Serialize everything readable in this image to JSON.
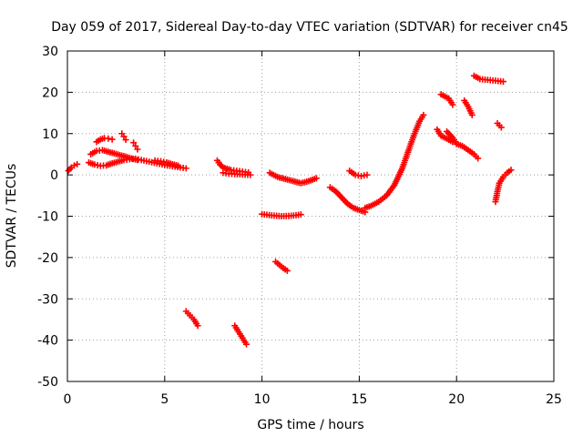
{
  "chart_data": {
    "type": "scatter",
    "title": "Day 059 of 2017, Sidereal Day-to-day VTEC variation (SDTVAR) for receiver cn45",
    "xlabel": "GPS time / hours",
    "ylabel": "SDTVAR / TECUs",
    "xlim": [
      0,
      25
    ],
    "ylim": [
      -50,
      30
    ],
    "xticks": [
      0,
      5,
      10,
      15,
      20,
      25
    ],
    "yticks": [
      -50,
      -40,
      -30,
      -20,
      -10,
      0,
      10,
      20,
      30
    ],
    "grid": true,
    "legend": "none",
    "marker": "+",
    "color": "#ff0000",
    "segments": [
      {
        "x": [
          0.05,
          0.2,
          0.35,
          0.5
        ],
        "y": [
          1.0,
          1.8,
          2.3,
          2.6
        ]
      },
      {
        "x": [
          1.1,
          1.4,
          1.7,
          2.0,
          2.3,
          2.6,
          2.9,
          3.2,
          3.5,
          3.8,
          4.2,
          4.6,
          5.0,
          5.4,
          5.8,
          6.1
        ],
        "y": [
          3.0,
          2.5,
          2.2,
          2.3,
          2.8,
          3.2,
          3.6,
          3.8,
          3.9,
          3.6,
          3.2,
          2.8,
          2.4,
          2.1,
          1.8,
          1.6
        ]
      },
      {
        "x": [
          1.2,
          1.5,
          1.8,
          2.1,
          2.4,
          2.7,
          3.0,
          3.3,
          3.6
        ],
        "y": [
          5.0,
          5.8,
          6.0,
          5.6,
          5.2,
          4.8,
          4.4,
          4.0,
          3.6
        ]
      },
      {
        "x": [
          1.5,
          1.7,
          1.9,
          2.1,
          2.3
        ],
        "y": [
          8.0,
          8.6,
          8.9,
          8.8,
          8.6
        ]
      },
      {
        "x": [
          2.8,
          2.9,
          3.0
        ],
        "y": [
          10.0,
          9.3,
          8.5
        ]
      },
      {
        "x": [
          3.4,
          3.5,
          3.6
        ],
        "y": [
          7.8,
          7.0,
          6.2
        ]
      },
      {
        "x": [
          4.5,
          4.8,
          5.1,
          5.4,
          5.7
        ],
        "y": [
          3.5,
          3.3,
          3.0,
          2.6,
          2.2
        ]
      },
      {
        "x": [
          7.7,
          7.85,
          8.0,
          8.2,
          8.4,
          8.7,
          9.0,
          9.3
        ],
        "y": [
          3.5,
          2.5,
          1.8,
          1.5,
          1.2,
          1.0,
          0.8,
          0.6
        ]
      },
      {
        "x": [
          8.0,
          8.3,
          8.6,
          9.0,
          9.4
        ],
        "y": [
          0.5,
          0.3,
          0.2,
          0.1,
          0.0
        ]
      },
      {
        "x": [
          6.1,
          6.3,
          6.5,
          6.7
        ],
        "y": [
          -33.0,
          -34.0,
          -35.0,
          -36.5
        ]
      },
      {
        "x": [
          8.6,
          8.8,
          9.0,
          9.2
        ],
        "y": [
          -36.5,
          -38.0,
          -39.5,
          -41.0
        ]
      },
      {
        "x": [
          10.0,
          10.5,
          11.0,
          11.5,
          12.0
        ],
        "y": [
          -9.5,
          -9.8,
          -10.0,
          -9.9,
          -9.6
        ]
      },
      {
        "x": [
          10.7,
          10.9,
          11.1,
          11.3
        ],
        "y": [
          -21.0,
          -21.8,
          -22.6,
          -23.2
        ]
      },
      {
        "x": [
          10.4,
          10.8,
          11.2,
          11.6,
          12.0,
          12.4,
          12.8
        ],
        "y": [
          0.5,
          -0.5,
          -1.0,
          -1.5,
          -2.0,
          -1.5,
          -0.8
        ]
      },
      {
        "x": [
          13.5,
          13.8,
          14.1,
          14.4,
          14.7,
          15.0,
          15.3
        ],
        "y": [
          -3.0,
          -4.0,
          -5.5,
          -7.0,
          -8.0,
          -8.5,
          -9.0
        ]
      },
      {
        "x": [
          14.5,
          14.8,
          15.1,
          15.4
        ],
        "y": [
          1.0,
          0.0,
          -0.3,
          0.0
        ]
      },
      {
        "x": [
          15.3,
          15.6,
          16.0,
          16.4,
          16.8,
          17.2,
          17.5,
          17.8,
          18.1,
          18.3
        ],
        "y": [
          -8.0,
          -7.5,
          -6.5,
          -5.0,
          -2.5,
          1.5,
          5.5,
          9.5,
          13.0,
          14.5
        ]
      },
      {
        "x": [
          19.0,
          19.2,
          19.4,
          19.6,
          19.8
        ],
        "y": [
          11.0,
          9.5,
          9.0,
          8.5,
          8.0
        ]
      },
      {
        "x": [
          19.2,
          19.4,
          19.6,
          19.8
        ],
        "y": [
          19.5,
          19.0,
          18.5,
          17.0
        ]
      },
      {
        "x": [
          19.5,
          19.8,
          20.0,
          20.3,
          20.6,
          20.9,
          21.1
        ],
        "y": [
          10.5,
          9.0,
          7.5,
          7.0,
          6.0,
          5.0,
          4.0
        ]
      },
      {
        "x": [
          20.4,
          20.6,
          20.8
        ],
        "y": [
          18.0,
          16.5,
          14.5
        ]
      },
      {
        "x": [
          20.9,
          21.2,
          21.6,
          22.0,
          22.4
        ],
        "y": [
          24.0,
          23.2,
          23.0,
          22.8,
          22.6
        ]
      },
      {
        "x": [
          22.1,
          22.2,
          22.3
        ],
        "y": [
          12.5,
          12.0,
          11.5
        ]
      },
      {
        "x": [
          22.0,
          22.1,
          22.2,
          22.4,
          22.6,
          22.8
        ],
        "y": [
          -6.5,
          -4.0,
          -2.0,
          -0.5,
          0.5,
          1.2
        ]
      }
    ]
  }
}
